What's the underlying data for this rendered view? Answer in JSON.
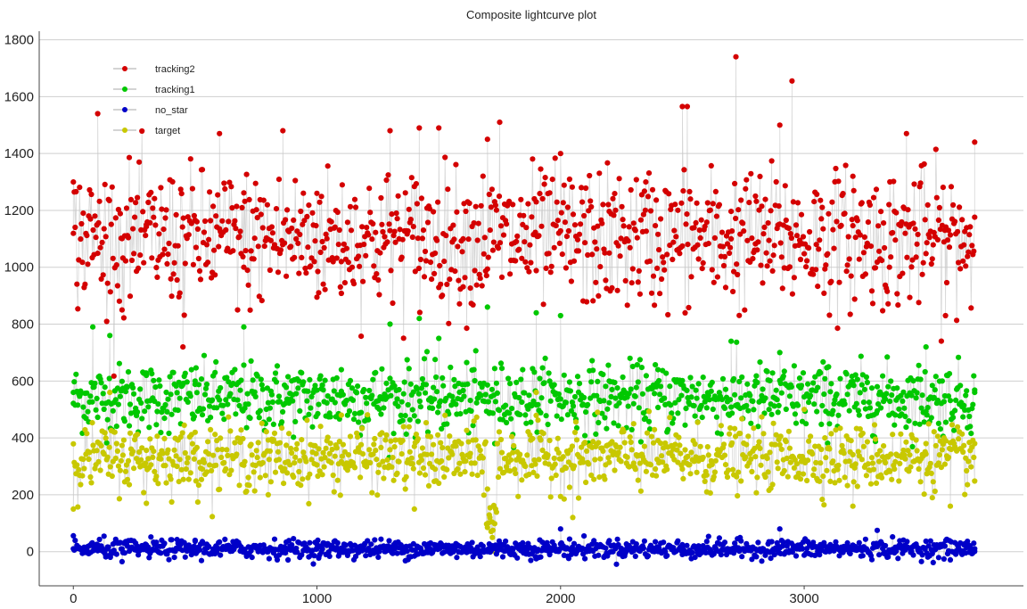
{
  "chart_data": {
    "type": "scatter",
    "title": "Composite lightcurve plot",
    "xlabel": "",
    "ylabel": "",
    "xlim": [
      -140,
      3900
    ],
    "ylim": [
      -120,
      1830
    ],
    "x_ticks": [
      0,
      1000,
      2000,
      3000
    ],
    "y_ticks": [
      0,
      200,
      400,
      600,
      800,
      1000,
      1200,
      1400,
      1600,
      1800
    ],
    "grid": "horizontal",
    "legend_position": "top-left",
    "connecting_line_color": "#c8c8c8",
    "x_range": [
      0,
      3700
    ],
    "series": [
      {
        "name": "tracking2",
        "color": "#d40000",
        "typical_mean": 1100,
        "typical_spread": 120,
        "values": [
          [
            0,
            1300
          ],
          [
            100,
            1540
          ],
          [
            200,
            850
          ],
          [
            300,
            1150
          ],
          [
            450,
            720
          ],
          [
            600,
            1470
          ],
          [
            700,
            1000
          ],
          [
            860,
            1480
          ],
          [
            1000,
            1260
          ],
          [
            1100,
            1020
          ],
          [
            1300,
            1480
          ],
          [
            1420,
            1490
          ],
          [
            1500,
            1490
          ],
          [
            1600,
            1100
          ],
          [
            1700,
            1450
          ],
          [
            1750,
            1510
          ],
          [
            1900,
            1230
          ],
          [
            2000,
            1400
          ],
          [
            2200,
            1050
          ],
          [
            2350,
            1300
          ],
          [
            2500,
            1565
          ],
          [
            2520,
            1565
          ],
          [
            2700,
            1100
          ],
          [
            2720,
            1740
          ],
          [
            2800,
            1250
          ],
          [
            2900,
            1500
          ],
          [
            2950,
            1655
          ],
          [
            3050,
            1080
          ],
          [
            3200,
            1320
          ],
          [
            3350,
            1000
          ],
          [
            3420,
            1470
          ],
          [
            3580,
            830
          ],
          [
            3700,
            1440
          ]
        ]
      },
      {
        "name": "tracking1",
        "color": "#00c800",
        "typical_mean": 540,
        "typical_spread": 60,
        "values": [
          [
            0,
            560
          ],
          [
            80,
            790
          ],
          [
            150,
            760
          ],
          [
            300,
            620
          ],
          [
            500,
            600
          ],
          [
            700,
            790
          ],
          [
            900,
            530
          ],
          [
            1100,
            640
          ],
          [
            1300,
            800
          ],
          [
            1420,
            820
          ],
          [
            1500,
            750
          ],
          [
            1700,
            860
          ],
          [
            1730,
            380
          ],
          [
            1900,
            840
          ],
          [
            2000,
            830
          ],
          [
            2200,
            600
          ],
          [
            2400,
            640
          ],
          [
            2700,
            740
          ],
          [
            2900,
            700
          ],
          [
            3100,
            650
          ],
          [
            3300,
            580
          ],
          [
            3500,
            720
          ],
          [
            3700,
            560
          ]
        ]
      },
      {
        "name": "no_star",
        "color": "#0000c8",
        "typical_mean": 10,
        "typical_spread": 16,
        "values": [
          [
            0,
            10
          ],
          [
            200,
            -35
          ],
          [
            500,
            40
          ],
          [
            1000,
            10
          ],
          [
            1500,
            20
          ],
          [
            1700,
            0
          ],
          [
            2000,
            80
          ],
          [
            2500,
            -10
          ],
          [
            2900,
            80
          ],
          [
            3300,
            75
          ],
          [
            3700,
            10
          ]
        ]
      },
      {
        "name": "target",
        "color": "#c8c800",
        "typical_mean": 330,
        "typical_spread": 55,
        "values": [
          [
            0,
            150
          ],
          [
            150,
            560
          ],
          [
            300,
            170
          ],
          [
            500,
            420
          ],
          [
            800,
            200
          ],
          [
            1100,
            480
          ],
          [
            1400,
            150
          ],
          [
            1700,
            220
          ],
          [
            1710,
            120
          ],
          [
            1720,
            50
          ],
          [
            1730,
            0
          ],
          [
            1740,
            380
          ],
          [
            1900,
            560
          ],
          [
            2050,
            120
          ],
          [
            2300,
            450
          ],
          [
            2600,
            210
          ],
          [
            3000,
            500
          ],
          [
            3200,
            160
          ],
          [
            3500,
            380
          ],
          [
            3600,
            160
          ],
          [
            3700,
            380
          ]
        ]
      }
    ]
  }
}
